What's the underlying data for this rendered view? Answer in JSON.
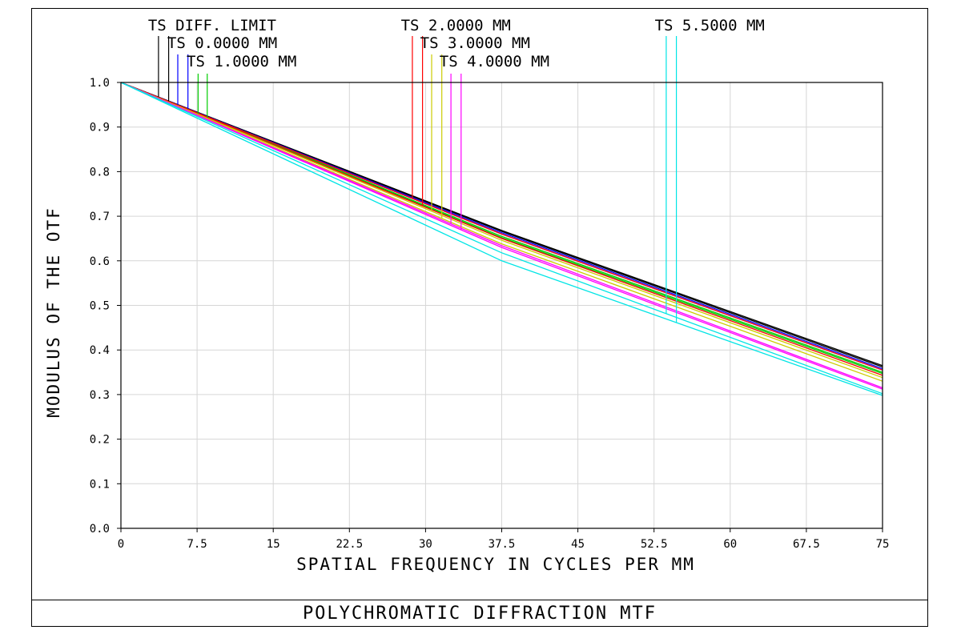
{
  "footer": {
    "title": "POLYCHROMATIC DIFFRACTION MTF"
  },
  "chart_data": {
    "type": "line",
    "title": "POLYCHROMATIC DIFFRACTION MTF",
    "xlabel": "SPATIAL FREQUENCY IN CYCLES PER MM",
    "ylabel": "MODULUS OF THE OTF",
    "xlim": [
      0,
      75
    ],
    "ylim": [
      0,
      1.0
    ],
    "x_ticks": [
      0,
      7.5,
      15,
      22.5,
      30,
      37.5,
      45,
      52.5,
      60,
      67.5,
      75
    ],
    "x_tick_labels": [
      "0",
      "7.5",
      "15",
      "22.5",
      "30",
      "37.5",
      "45",
      "52.5",
      "60",
      "67.5",
      "75"
    ],
    "y_ticks": [
      0,
      0.1,
      0.2,
      0.3,
      0.4,
      0.5,
      0.6,
      0.7,
      0.8,
      0.9,
      1.0
    ],
    "y_tick_labels": [
      "0.0",
      "0.1",
      "0.2",
      "0.3",
      "0.4",
      "0.5",
      "0.6",
      "0.7",
      "0.8",
      "0.9",
      "1.0"
    ],
    "grid": true,
    "legend_labels": [
      {
        "text": "TS DIFF. LIMIT",
        "row": 0,
        "x": 3.3
      },
      {
        "text": "TS 0.0000 MM",
        "row": 1,
        "x": 5.2
      },
      {
        "text": "TS 1.0000 MM",
        "row": 2,
        "x": 7.1
      },
      {
        "text": "TS 2.0000 MM",
        "row": 0,
        "x": 28.2
      },
      {
        "text": "TS 3.0000 MM",
        "row": 1,
        "x": 30.1
      },
      {
        "text": "TS 4.0000 MM",
        "row": 2,
        "x": 32.0
      },
      {
        "text": "TS 5.5000 MM",
        "row": 0,
        "x": 53.2
      }
    ],
    "series": [
      {
        "color": "#000000",
        "x": [
          0,
          37.5,
          75
        ],
        "y": [
          1.0,
          0.668,
          0.365
        ],
        "marker_x": 3.7
      },
      {
        "color": "#000000",
        "x": [
          0,
          37.5,
          75
        ],
        "y": [
          1.0,
          0.666,
          0.362
        ],
        "marker_x": 4.7
      },
      {
        "color": "#0000ff",
        "x": [
          0,
          37.5,
          75
        ],
        "y": [
          1.0,
          0.663,
          0.358
        ],
        "marker_x": 5.6
      },
      {
        "color": "#0000ff",
        "x": [
          0,
          37.5,
          75
        ],
        "y": [
          1.0,
          0.66,
          0.355
        ],
        "marker_x": 6.6
      },
      {
        "color": "#00cc00",
        "x": [
          0,
          37.5,
          75
        ],
        "y": [
          1.0,
          0.655,
          0.35
        ],
        "marker_x": 7.6
      },
      {
        "color": "#00cc00",
        "x": [
          0,
          37.5,
          75
        ],
        "y": [
          1.0,
          0.652,
          0.347
        ],
        "marker_x": 8.5
      },
      {
        "color": "#ff0000",
        "x": [
          0,
          37.5,
          75
        ],
        "y": [
          1.0,
          0.66,
          0.355
        ],
        "marker_x": 28.7
      },
      {
        "color": "#ff0000",
        "x": [
          0,
          37.5,
          75
        ],
        "y": [
          1.0,
          0.65,
          0.343
        ],
        "marker_x": 29.7
      },
      {
        "color": "#cccc00",
        "x": [
          0,
          37.5,
          75
        ],
        "y": [
          1.0,
          0.646,
          0.338
        ],
        "marker_x": 30.6
      },
      {
        "color": "#cccc00",
        "x": [
          0,
          37.5,
          75
        ],
        "y": [
          1.0,
          0.638,
          0.33
        ],
        "marker_x": 31.6
      },
      {
        "color": "#ff00ff",
        "x": [
          0,
          37.5,
          75
        ],
        "y": [
          1.0,
          0.634,
          0.315
        ],
        "marker_x": 32.5
      },
      {
        "color": "#ff00ff",
        "x": [
          0,
          37.5,
          75
        ],
        "y": [
          1.0,
          0.63,
          0.312
        ],
        "marker_x": 33.5
      },
      {
        "color": "#00e5e5",
        "x": [
          0,
          37.5,
          75
        ],
        "y": [
          1.0,
          0.618,
          0.302
        ],
        "marker_x": 53.7
      },
      {
        "color": "#00e5e5",
        "x": [
          0,
          37.5,
          75
        ],
        "y": [
          1.0,
          0.6,
          0.298
        ],
        "marker_x": 54.7
      }
    ]
  }
}
